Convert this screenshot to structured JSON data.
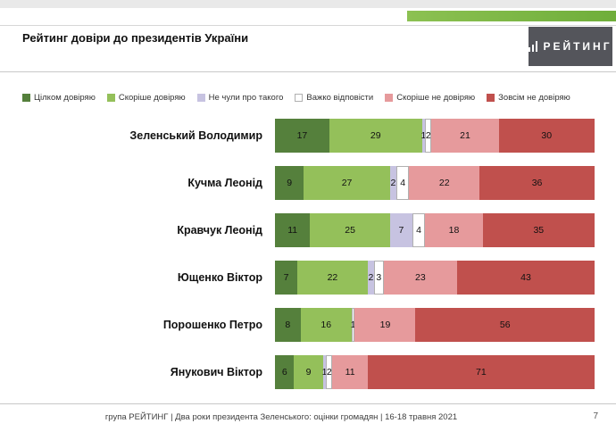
{
  "header": {
    "title": "Рейтинг довіри до президентів України",
    "logo": "РЕЙТИНГ"
  },
  "colors": {
    "accent_green": "#6fae3a",
    "logo_background": "#54555b",
    "fully_trust": "#55803c",
    "rather_trust": "#94c05a",
    "never_heard": "#c7c3e1",
    "hard_to_answer": "#ffffff",
    "rather_distrust": "#e69a9c",
    "fully_distrust": "#c0504d"
  },
  "chart_data": {
    "type": "bar",
    "stacked": true,
    "orientation": "horizontal",
    "title": "Рейтинг довіри до президентів України",
    "xlim": [
      0,
      100
    ],
    "value_labels": true,
    "legend_position": "top",
    "categories": [
      "Зеленський Володимир",
      "Кучма Леонід",
      "Кравчук Леонід",
      "Ющенко Віктор",
      "Порошенко Петро",
      "Янукович Віктор"
    ],
    "series": [
      {
        "name": "Цілком довіряю",
        "color": "#55803c",
        "values": [
          17,
          9,
          11,
          7,
          8,
          6
        ]
      },
      {
        "name": "Скоріше довіряю",
        "color": "#94c05a",
        "values": [
          29,
          27,
          25,
          22,
          16,
          9
        ]
      },
      {
        "name": "Не чули про такого",
        "color": "#c7c3e1",
        "values": [
          1,
          2,
          7,
          2,
          0,
          1
        ]
      },
      {
        "name": "Важко відповісти",
        "color": "#ffffff",
        "border": "#b0b0b0",
        "values": [
          2,
          4,
          4,
          3,
          1,
          2
        ]
      },
      {
        "name": "Скоріше не довіряю",
        "color": "#e69a9c",
        "values": [
          21,
          22,
          18,
          23,
          19,
          11
        ]
      },
      {
        "name": "Зовсім не довіряю",
        "color": "#c0504d",
        "values": [
          30,
          36,
          35,
          43,
          56,
          71
        ]
      }
    ]
  },
  "footer": {
    "text": "група РЕЙТИНГ | Два роки президента Зеленського: оцінки громадян | 16-18 травня 2021",
    "page": "7"
  }
}
